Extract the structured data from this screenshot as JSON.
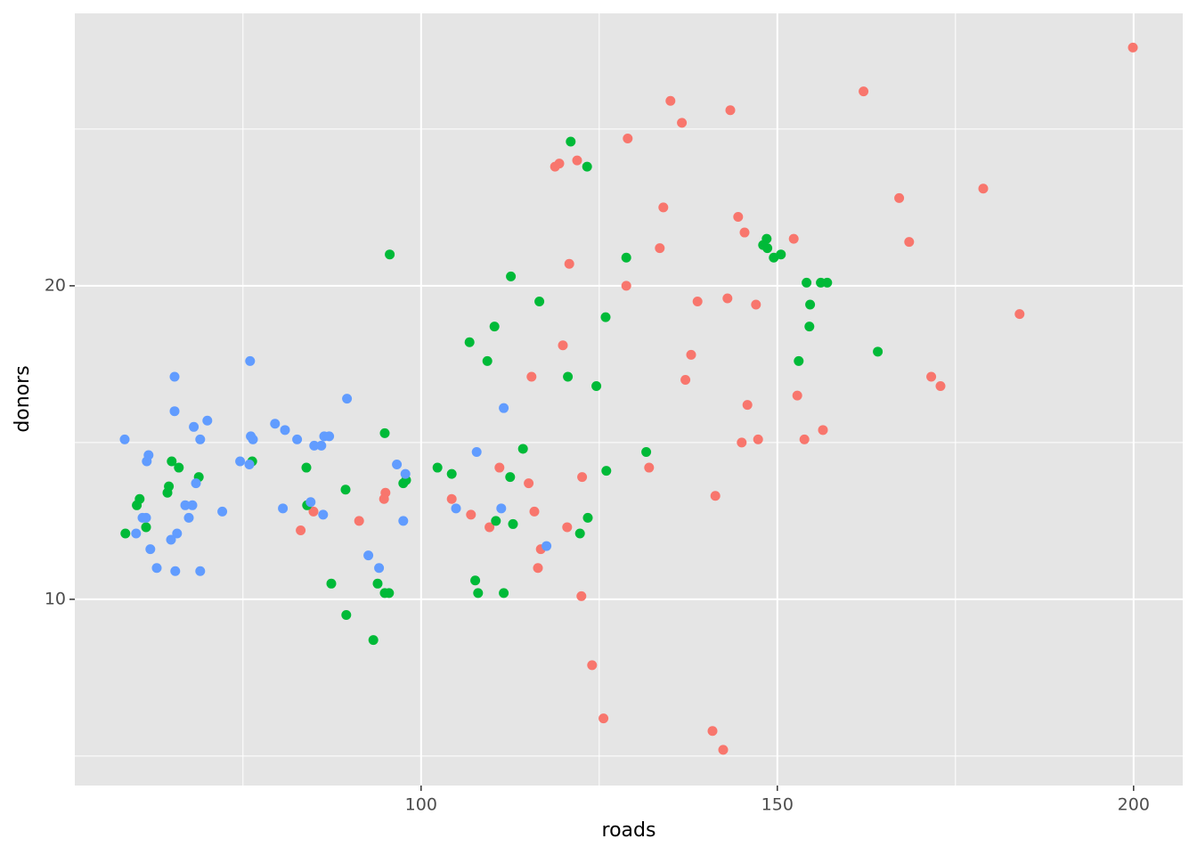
{
  "chart_data": {
    "type": "scatter",
    "x_label": "roads",
    "y_label": "donors",
    "xlim": [
      51.4,
      206.9
    ],
    "ylim": [
      4.06,
      28.69
    ],
    "xticks": [
      100,
      150,
      200
    ],
    "yticks": [
      10,
      20
    ],
    "minor_xticks": [
      75,
      125,
      175
    ],
    "minor_yticks": [
      5,
      15,
      25
    ],
    "grid": true,
    "background": "#e5e5e5",
    "grid_color": "#ffffff",
    "series": [
      {
        "color": "#F8766D",
        "x": [
          199.9,
          162.1,
          135.0,
          143.4,
          136.6,
          129.0,
          118.8,
          119.4,
          121.9,
          178.9,
          167.1,
          134.0,
          144.5,
          145.4,
          168.5,
          152.3,
          133.5,
          120.8,
          128.8,
          138.8,
          143.0,
          147.0,
          184.0,
          119.9,
          137.9,
          115.5,
          137.1,
          171.6,
          172.9,
          152.8,
          145.8,
          156.4,
          147.3,
          145.0,
          153.8,
          111.0,
          132.0,
          115.1,
          122.6,
          95.0,
          94.8,
          104.3,
          141.3,
          91.3,
          107.0,
          115.9,
          84.9,
          109.6,
          83.1,
          120.5,
          116.8,
          116.4,
          122.5,
          124.0,
          125.6,
          140.9,
          142.4
        ],
        "values": [
          27.6,
          26.2,
          25.9,
          25.6,
          25.2,
          24.7,
          23.8,
          23.9,
          24.0,
          23.1,
          22.8,
          22.5,
          22.2,
          21.7,
          21.4,
          21.5,
          21.2,
          20.7,
          20.0,
          19.5,
          19.6,
          19.4,
          19.1,
          18.1,
          17.8,
          17.1,
          17.0,
          17.1,
          16.8,
          16.5,
          16.2,
          15.4,
          15.1,
          15.0,
          15.1,
          14.2,
          14.2,
          13.7,
          13.9,
          13.4,
          13.2,
          13.2,
          13.3,
          12.5,
          12.7,
          12.8,
          12.8,
          12.3,
          12.2,
          12.3,
          11.6,
          11.0,
          10.1,
          7.9,
          6.2,
          5.8,
          5.2
        ]
      },
      {
        "color": "#00BA38",
        "x": [
          121.0,
          123.3,
          95.6,
          128.8,
          148.5,
          148.0,
          148.6,
          149.5,
          150.5,
          112.6,
          154.1,
          156.1,
          157.0,
          116.6,
          154.6,
          125.9,
          110.3,
          154.5,
          106.8,
          164.1,
          109.3,
          153.0,
          120.6,
          124.6,
          94.9,
          131.6,
          114.3,
          65.0,
          76.3,
          66.0,
          83.9,
          102.3,
          104.3,
          126.0,
          68.8,
          112.5,
          97.9,
          97.5,
          64.6,
          64.4,
          89.4,
          60.5,
          60.1,
          84.0,
          123.4,
          110.5,
          112.9,
          61.4,
          58.5,
          122.3,
          87.4,
          107.6,
          93.9,
          95.5,
          94.9,
          108.0,
          111.6,
          89.5,
          93.3
        ],
        "values": [
          24.6,
          23.8,
          21.0,
          20.9,
          21.5,
          21.3,
          21.2,
          20.9,
          21.0,
          20.3,
          20.1,
          20.1,
          20.1,
          19.5,
          19.4,
          19.0,
          18.7,
          18.7,
          18.2,
          17.9,
          17.6,
          17.6,
          17.1,
          16.8,
          15.3,
          14.7,
          14.8,
          14.4,
          14.4,
          14.2,
          14.2,
          14.2,
          14.0,
          14.1,
          13.9,
          13.9,
          13.8,
          13.7,
          13.6,
          13.4,
          13.5,
          13.2,
          13.0,
          13.0,
          12.6,
          12.5,
          12.4,
          12.3,
          12.1,
          12.1,
          10.5,
          10.6,
          10.5,
          10.2,
          10.2,
          10.2,
          10.2,
          9.5,
          8.7
        ]
      },
      {
        "color": "#619CFF",
        "x": [
          76.0,
          65.4,
          89.6,
          111.6,
          65.4,
          70.0,
          68.1,
          79.5,
          80.9,
          58.4,
          69.0,
          76.1,
          76.4,
          82.6,
          86.4,
          87.1,
          85.0,
          86.0,
          61.75,
          61.5,
          74.6,
          75.9,
          96.6,
          107.8,
          97.8,
          68.4,
          66.9,
          67.9,
          72.1,
          80.6,
          84.5,
          86.25,
          104.9,
          111.25,
          60.9,
          61.4,
          67.4,
          97.5,
          60.0,
          65.75,
          64.9,
          62.0,
          117.6,
          92.6,
          62.9,
          94.1,
          65.5,
          69.0
        ],
        "values": [
          17.6,
          17.1,
          16.4,
          16.1,
          16.0,
          15.7,
          15.5,
          15.6,
          15.4,
          15.1,
          15.1,
          15.2,
          15.1,
          15.1,
          15.2,
          15.2,
          14.9,
          14.9,
          14.6,
          14.4,
          14.4,
          14.3,
          14.3,
          14.7,
          14.0,
          13.7,
          13.0,
          13.0,
          12.8,
          12.9,
          13.1,
          12.7,
          12.9,
          12.9,
          12.6,
          12.6,
          12.6,
          12.5,
          12.1,
          12.1,
          11.9,
          11.6,
          11.7,
          11.4,
          11.0,
          11.0,
          10.9,
          10.9
        ]
      }
    ]
  }
}
